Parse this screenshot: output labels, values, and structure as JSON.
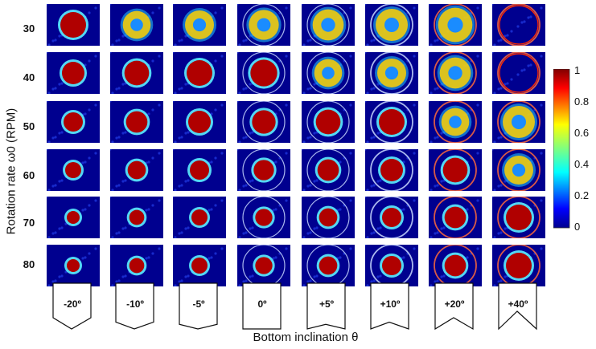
{
  "figure": {
    "y_axis_title": "Rotation rate ω0 (RPM)",
    "x_axis_title": "Bottom inclination θ",
    "colorbar": {
      "ticks": [
        "1",
        "0.8",
        "0.6",
        "0.4",
        "0.2",
        "0"
      ],
      "range": [
        0,
        1
      ],
      "colormap": "jet"
    },
    "rows": [
      "30",
      "40",
      "50",
      "60",
      "70",
      "80"
    ],
    "conditions": [
      "-20º",
      "-10º",
      "-5º",
      "0º",
      "+5º",
      "+10º",
      "+20º",
      "+40º"
    ],
    "inclination_values": [
      -20,
      -10,
      -5,
      0,
      5,
      10,
      20,
      40
    ],
    "rpm_values": [
      30,
      40,
      50,
      60,
      70,
      80
    ],
    "colors": {
      "background": "#00008f",
      "hot": "#b00000",
      "ring": "#f0f0ff"
    }
  }
}
